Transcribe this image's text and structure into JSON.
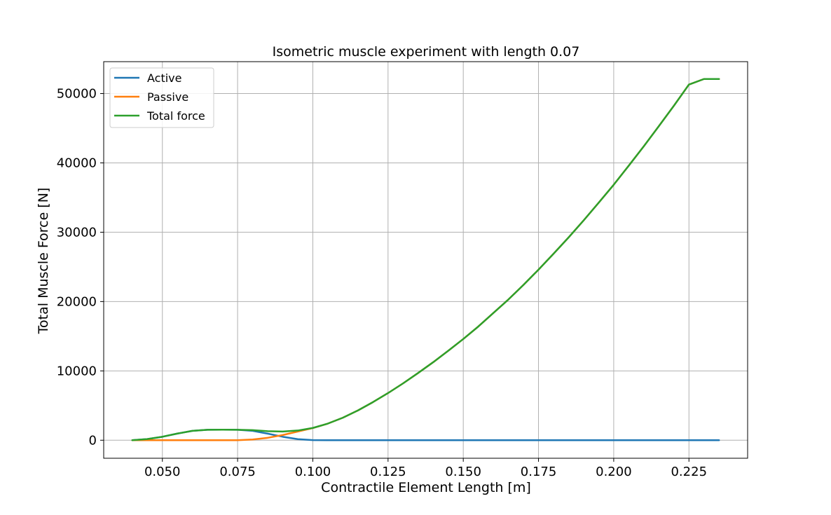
{
  "chart_data": {
    "type": "line",
    "title": "Isometric muscle experiment with length 0.07",
    "xlabel": "Contractile Element Length [m]",
    "ylabel": "Total Muscle Force [N]",
    "xlim": [
      0.0305,
      0.2445
    ],
    "ylim": [
      -2600,
      54600
    ],
    "xticks": [
      0.05,
      0.075,
      0.1,
      0.125,
      0.15,
      0.175,
      0.2,
      0.225
    ],
    "xtick_labels": [
      "0.050",
      "0.075",
      "0.100",
      "0.125",
      "0.150",
      "0.175",
      "0.200",
      "0.225"
    ],
    "yticks": [
      0,
      10000,
      20000,
      30000,
      40000,
      50000
    ],
    "ytick_labels": [
      "0",
      "10000",
      "20000",
      "30000",
      "40000",
      "50000"
    ],
    "grid": true,
    "legend_position": "top-left",
    "x": [
      0.04,
      0.045,
      0.05,
      0.055,
      0.06,
      0.065,
      0.07,
      0.075,
      0.08,
      0.085,
      0.09,
      0.095,
      0.1,
      0.105,
      0.11,
      0.115,
      0.12,
      0.125,
      0.13,
      0.135,
      0.14,
      0.145,
      0.15,
      0.155,
      0.16,
      0.165,
      0.17,
      0.175,
      0.18,
      0.185,
      0.19,
      0.195,
      0.2,
      0.205,
      0.21,
      0.215,
      0.22,
      0.225,
      0.23,
      0.235
    ],
    "series": [
      {
        "name": "Active",
        "color": "#1f77b4",
        "values": [
          0,
          170,
          500,
          960,
          1350,
          1500,
          1520,
          1500,
          1350,
          950,
          500,
          150,
          20,
          0,
          0,
          0,
          0,
          0,
          0,
          0,
          0,
          0,
          0,
          0,
          0,
          0,
          0,
          0,
          0,
          0,
          0,
          0,
          0,
          0,
          0,
          0,
          0,
          0,
          0,
          0
        ]
      },
      {
        "name": "Passive",
        "color": "#ff7f0e",
        "values": [
          0,
          0,
          0,
          0,
          0,
          0,
          0,
          0,
          100,
          350,
          750,
          1250,
          1750,
          2400,
          3250,
          4300,
          5500,
          6800,
          8200,
          9700,
          11250,
          12900,
          14600,
          16400,
          18350,
          20300,
          22400,
          24600,
          26900,
          29250,
          31700,
          34250,
          36850,
          39600,
          42400,
          45300,
          48250,
          51300,
          52100,
          52100
        ]
      },
      {
        "name": "Total force",
        "color": "#2ca02c",
        "values": [
          0,
          170,
          500,
          960,
          1350,
          1500,
          1520,
          1500,
          1450,
          1300,
          1250,
          1400,
          1770,
          2400,
          3250,
          4300,
          5500,
          6800,
          8200,
          9700,
          11250,
          12900,
          14600,
          16400,
          18350,
          20300,
          22400,
          24600,
          26900,
          29250,
          31700,
          34250,
          36850,
          39600,
          42400,
          45300,
          48250,
          51300,
          52100,
          52100
        ]
      }
    ]
  }
}
